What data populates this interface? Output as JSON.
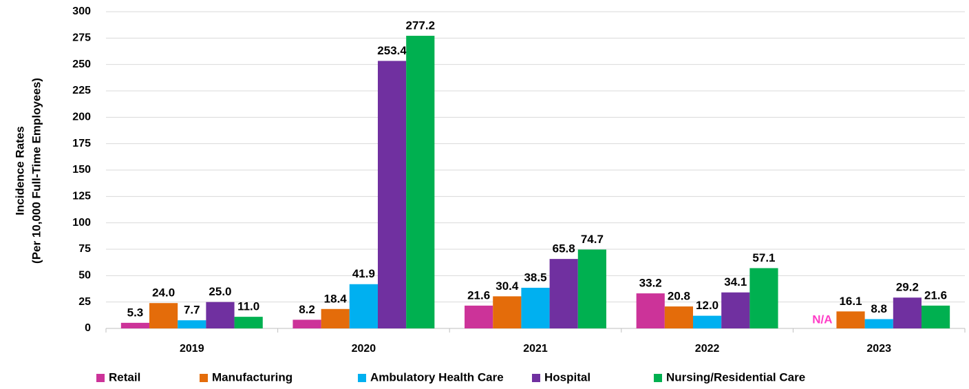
{
  "chart_data": {
    "type": "bar",
    "y_label": [
      "Incidence Rates",
      "(Per 10,000 Full-Time Employees)"
    ],
    "categories": [
      "2019",
      "2020",
      "2021",
      "2022",
      "2023"
    ],
    "series": [
      {
        "name": "Retail",
        "color": "#cc3399",
        "values": [
          5.3,
          8.2,
          21.6,
          33.2,
          null
        ],
        "value_labels": [
          "5.3",
          "8.2",
          "21.6",
          "33.2",
          "N/A"
        ]
      },
      {
        "name": "Manufacturing",
        "color": "#e46c0a",
        "values": [
          24.0,
          18.4,
          30.4,
          20.8,
          16.1
        ],
        "value_labels": [
          "24.0",
          "18.4",
          "30.4",
          "20.8",
          "16.1"
        ]
      },
      {
        "name": "Ambulatory Health Care",
        "color": "#00b0f0",
        "values": [
          7.7,
          41.9,
          38.5,
          12.0,
          8.8
        ],
        "value_labels": [
          "7.7",
          "41.9",
          "38.5",
          "12.0",
          "8.8"
        ]
      },
      {
        "name": "Hospital",
        "color": "#7030a0",
        "values": [
          25.0,
          253.4,
          65.8,
          34.1,
          29.2
        ],
        "value_labels": [
          "25.0",
          "253.4",
          "65.8",
          "34.1",
          "29.2"
        ]
      },
      {
        "name": "Nursing/Residential Care",
        "color": "#00b050",
        "values": [
          11.0,
          277.2,
          74.7,
          57.1,
          21.6
        ],
        "value_labels": [
          "11.0",
          "277.2",
          "74.7",
          "57.1",
          "21.6"
        ]
      }
    ],
    "ylim": [
      0,
      300
    ],
    "yticks": [
      0,
      25,
      50,
      75,
      100,
      125,
      150,
      175,
      200,
      225,
      250,
      275,
      300
    ],
    "grid": true,
    "legend": "bottom"
  }
}
